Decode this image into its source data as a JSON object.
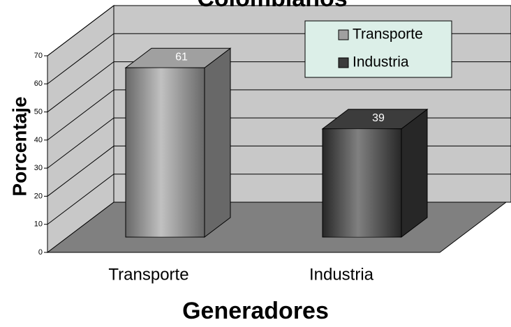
{
  "chart_data": {
    "type": "bar3d",
    "title": "Colombianos",
    "categories": [
      "Transporte",
      "Industria"
    ],
    "values": [
      61,
      39
    ],
    "colors": [
      "#a0a0a0",
      "#3c3c3c"
    ],
    "ylim": [
      0,
      70
    ],
    "yticks": [
      0,
      10,
      20,
      30,
      40,
      50,
      60,
      70
    ],
    "ylabel": "Porcentaje",
    "xlabel": "Generadores",
    "grid": true,
    "legend": "upper right"
  }
}
